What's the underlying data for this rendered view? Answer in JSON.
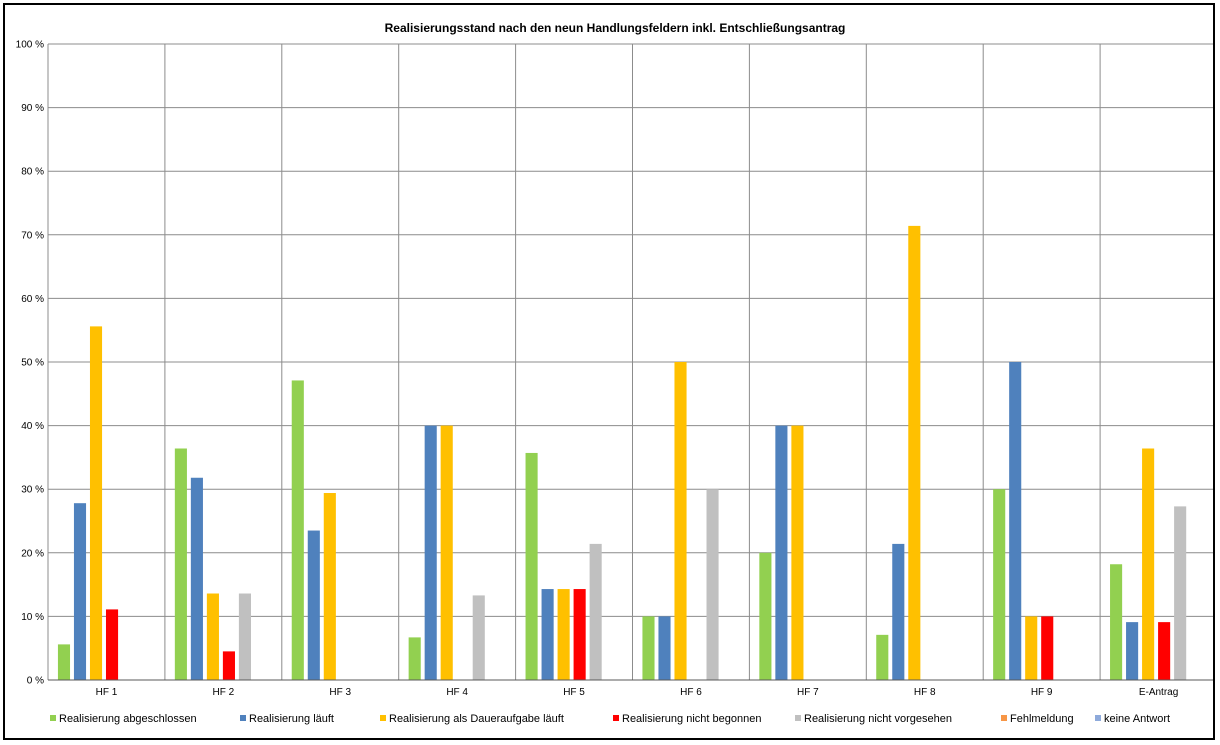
{
  "chart_data": {
    "type": "bar",
    "title": "Realisierungsstand nach den neun Handlungsfeldern inkl. Entschließungsantrag",
    "categories": [
      "HF 1",
      "HF 2",
      "HF 3",
      "HF 4",
      "HF 5",
      "HF 6",
      "HF 7",
      "HF 8",
      "HF 9",
      "E-Antrag"
    ],
    "ylim": [
      0,
      100
    ],
    "yticks": [
      "0 %",
      "10 %",
      "20 %",
      "30 %",
      "40 %",
      "50 %",
      "60 %",
      "70 %",
      "80 %",
      "90 %",
      "100 %"
    ],
    "grid": true,
    "legend_position": "bottom",
    "series": [
      {
        "name": "Realisierung abgeschlossen",
        "color": "#92d050",
        "values": [
          5.6,
          36.4,
          47.1,
          6.7,
          35.7,
          10,
          20,
          7.1,
          30,
          18.2
        ]
      },
      {
        "name": "Realisierung läuft",
        "color": "#4f81bd",
        "values": [
          27.8,
          31.8,
          23.5,
          40,
          14.3,
          10,
          40,
          21.4,
          50,
          9.1
        ]
      },
      {
        "name": "Realisierung als Daueraufgabe läuft",
        "color": "#ffc000",
        "values": [
          55.6,
          13.6,
          29.4,
          40,
          14.3,
          50,
          40,
          71.4,
          10,
          36.4
        ]
      },
      {
        "name": "Realisierung nicht begonnen",
        "color": "#ff0000",
        "values": [
          11.1,
          4.5,
          0,
          0,
          14.3,
          0,
          0,
          0,
          10,
          9.1
        ]
      },
      {
        "name": "Realisierung nicht vorgesehen",
        "color": "#c0c0c0",
        "values": [
          0,
          13.6,
          0,
          13.3,
          21.4,
          30,
          0,
          0,
          0,
          27.3
        ]
      },
      {
        "name": "Fehlmeldung",
        "color": "#f79646",
        "values": [
          0,
          0,
          0,
          0,
          0,
          0,
          0,
          0,
          0,
          0
        ]
      },
      {
        "name": "keine Antwort",
        "color": "#8eaadb",
        "values": [
          0,
          0,
          0,
          0,
          0,
          0,
          0,
          0,
          0,
          0
        ]
      }
    ]
  }
}
